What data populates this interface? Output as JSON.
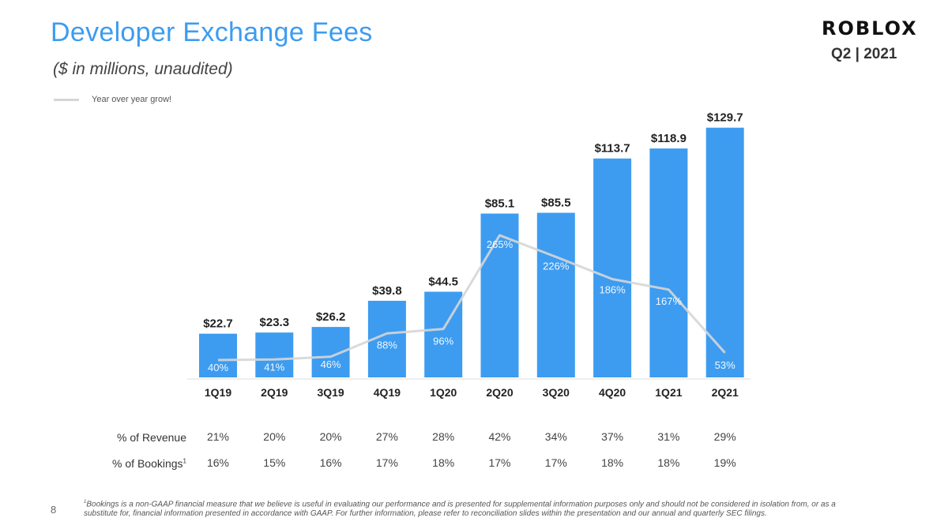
{
  "slide": {
    "title": "Developer Exchange Fees",
    "subtitle": "($ in millions,  unaudited)",
    "logo": "ROBLOX",
    "period": "Q2 | 2021",
    "page_number": "8",
    "footnote_marker": "1",
    "footnote": "Bookings is a non-GAAP financial measure that we believe is useful in evaluating our performance and is presented for supplemental information purposes only and should not be considered in isolation from, or as a substitute for, financial information presented in accordance with GAAP. For further information, please refer to reconciliation slides within the presentation and our annual and quarterly SEC filings."
  },
  "table": {
    "revenue_label": "% of Revenue",
    "bookings_label": "% of Bookings",
    "bookings_marker": "1",
    "revenue_values": [
      "21%",
      "20%",
      "20%",
      "27%",
      "28%",
      "42%",
      "34%",
      "37%",
      "31%",
      "29%"
    ],
    "bookings_values": [
      "16%",
      "15%",
      "16%",
      "17%",
      "18%",
      "17%",
      "17%",
      "18%",
      "18%",
      "19%"
    ]
  },
  "chart_data": {
    "type": "bar",
    "title": "Developer Exchange Fees",
    "subtitle": "($ in millions,  unaudited)",
    "categories": [
      "1Q19",
      "2Q19",
      "3Q19",
      "4Q19",
      "1Q20",
      "2Q20",
      "3Q20",
      "4Q20",
      "1Q21",
      "2Q21"
    ],
    "series": [
      {
        "type": "bar",
        "values": [
          22.7,
          23.3,
          26.2,
          39.8,
          44.5,
          85.1,
          85.5,
          113.7,
          118.9,
          129.7
        ],
        "labels": [
          "$22.7",
          "$23.3",
          "$26.2",
          "$39.8",
          "$44.5",
          "$85.1",
          "$85.5",
          "$113.7",
          "$118.9",
          "$129.7"
        ],
        "color": "#3d9cf0"
      },
      {
        "name": "Year over year grow!",
        "type": "line",
        "values": [
          40,
          41,
          46,
          88,
          96,
          265,
          226,
          186,
          167,
          53
        ],
        "labels": [
          "40%",
          "41%",
          "46%",
          "88%",
          "96%",
          "265%",
          "226%",
          "186%",
          "167%",
          "53%"
        ],
        "color": "#d6d6d6"
      }
    ],
    "legend": "top-left",
    "grid": false
  }
}
